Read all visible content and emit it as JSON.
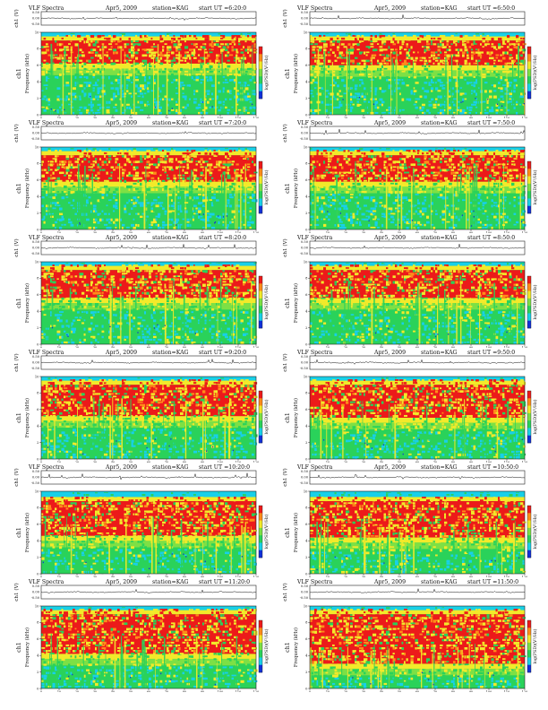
{
  "chart_data": [
    {
      "type": "heatmap",
      "title": "VLF Spectra",
      "date": "Apr5, 2009",
      "station": "station=KAG",
      "start": "start UT =6:20:0",
      "channel": "ch1",
      "ylabel": "Frequency (kHz)",
      "xlabel": "Time (sec)",
      "amp_label": "ch1 (V)",
      "amp_ticks": [
        "0.50",
        "0.00",
        "-0.50"
      ],
      "colorbar_label": "log(PSD)(V²/Hz)",
      "x_ticks": [
        "0",
        "10",
        "20",
        "30",
        "40",
        "50",
        "60",
        "70",
        "80",
        "90",
        "100",
        "110",
        "120"
      ],
      "y_ticks": [
        "0",
        "2",
        "4",
        "6",
        "8",
        "10"
      ],
      "xlim": [
        0,
        120
      ],
      "ylim": [
        0,
        10
      ],
      "red_band": [
        6.2,
        9.0
      ]
    },
    {
      "type": "heatmap",
      "title": "VLF Spectra",
      "date": "Apr5, 2009",
      "station": "station=KAG",
      "start": "start UT =6:50:0",
      "channel": "ch1",
      "ylabel": "Frequency (kHz)",
      "xlabel": "Time (sec)",
      "amp_label": "ch1 (V)",
      "amp_ticks": [
        "0.50",
        "0.00",
        "-0.50"
      ],
      "colorbar_label": "log(PSD)(V²/Hz)",
      "x_ticks": [
        "0",
        "10",
        "20",
        "30",
        "40",
        "50",
        "60",
        "70",
        "80",
        "90",
        "100",
        "110",
        "120"
      ],
      "y_ticks": [
        "0",
        "2",
        "4",
        "6",
        "8",
        "10"
      ],
      "xlim": [
        0,
        120
      ],
      "ylim": [
        0,
        10
      ],
      "red_band": [
        6.0,
        9.0
      ]
    },
    {
      "type": "heatmap",
      "title": "VLF Spectra",
      "date": "Apr5, 2009",
      "station": "station=KAG",
      "start": "start UT =7:20:0",
      "channel": "ch1",
      "ylabel": "Frequency (kHz)",
      "xlabel": "Time (sec)",
      "amp_label": "ch1 (V)",
      "amp_ticks": [
        "0.50",
        "0.00",
        "-0.50"
      ],
      "colorbar_label": "log(PSD)(V²/Hz)",
      "x_ticks": [
        "0",
        "10",
        "20",
        "30",
        "40",
        "50",
        "60",
        "70",
        "80",
        "90",
        "100",
        "110",
        "120"
      ],
      "y_ticks": [
        "0",
        "2",
        "4",
        "6",
        "8",
        "10"
      ],
      "xlim": [
        0,
        120
      ],
      "ylim": [
        0,
        10
      ],
      "red_band": [
        5.8,
        9.0
      ]
    },
    {
      "type": "heatmap",
      "title": "VLF Spectra",
      "date": "Apr5, 2009",
      "station": "station=KAG",
      "start": "start UT =7:50:0",
      "channel": "ch1",
      "ylabel": "Frequency (kHz)",
      "xlabel": "Time (sec)",
      "amp_label": "ch1 (V)",
      "amp_ticks": [
        "0.50",
        "0.00",
        "-0.50"
      ],
      "colorbar_label": "log(PSD)(V²/Hz)",
      "x_ticks": [
        "0",
        "10",
        "20",
        "30",
        "40",
        "50",
        "60",
        "70",
        "80",
        "90",
        "100",
        "110",
        "120"
      ],
      "y_ticks": [
        "0",
        "2",
        "4",
        "6",
        "8",
        "10"
      ],
      "xlim": [
        0,
        120
      ],
      "ylim": [
        0,
        10
      ],
      "red_band": [
        5.8,
        9.0
      ]
    },
    {
      "type": "heatmap",
      "title": "VLF Spectra",
      "date": "Apr5, 2009",
      "station": "station=KAG",
      "start": "start UT =8:20:0",
      "channel": "ch1",
      "ylabel": "Frequency (kHz)",
      "xlabel": "Time (sec)",
      "amp_label": "ch1 (V)",
      "amp_ticks": [
        "0.50",
        "0.00",
        "-0.50"
      ],
      "colorbar_label": "log(PSD)(V²/Hz)",
      "x_ticks": [
        "0",
        "10",
        "20",
        "30",
        "40",
        "50",
        "60",
        "70",
        "80",
        "90",
        "100",
        "110",
        "120"
      ],
      "y_ticks": [
        "0",
        "2",
        "4",
        "6",
        "8",
        "10"
      ],
      "xlim": [
        0,
        120
      ],
      "ylim": [
        0,
        10
      ],
      "red_band": [
        5.6,
        9.0
      ]
    },
    {
      "type": "heatmap",
      "title": "VLF Spectra",
      "date": "Apr5, 2009",
      "station": "station=KAG",
      "start": "start UT =8:50:0",
      "channel": "ch1",
      "ylabel": "Frequency (kHz)",
      "xlabel": "Time (sec)",
      "amp_label": "ch1 (V)",
      "amp_ticks": [
        "0.50",
        "0.00",
        "-0.50"
      ],
      "colorbar_label": "log(PSD)(V²/Hz)",
      "x_ticks": [
        "0",
        "10",
        "20",
        "30",
        "40",
        "50",
        "60",
        "70",
        "80",
        "90",
        "100",
        "110",
        "120"
      ],
      "y_ticks": [
        "0",
        "2",
        "4",
        "6",
        "8",
        "10"
      ],
      "xlim": [
        0,
        120
      ],
      "ylim": [
        0,
        10
      ],
      "red_band": [
        5.6,
        9.0
      ]
    },
    {
      "type": "heatmap",
      "title": "VLF Spectra",
      "date": "Apr5, 2009",
      "station": "station=KAG",
      "start": "start UT =9:20:0",
      "channel": "ch1",
      "ylabel": "Frequency (kHz)",
      "xlabel": "Time (sec)",
      "amp_label": "ch1 (V)",
      "amp_ticks": [
        "0.50",
        "0.00",
        "-0.50"
      ],
      "colorbar_label": "log(PSD)(V²/Hz)",
      "x_ticks": [
        "0",
        "10",
        "20",
        "30",
        "40",
        "50",
        "60",
        "70",
        "80",
        "90",
        "100",
        "110",
        "120"
      ],
      "y_ticks": [
        "0",
        "2",
        "4",
        "6",
        "8",
        "10"
      ],
      "xlim": [
        0,
        120
      ],
      "ylim": [
        0,
        10
      ],
      "red_band": [
        5.2,
        9.0
      ]
    },
    {
      "type": "heatmap",
      "title": "VLF Spectra",
      "date": "Apr5, 2009",
      "station": "station=KAG",
      "start": "start UT =9:50:0",
      "channel": "ch1",
      "ylabel": "Frequency (kHz)",
      "xlabel": "Time (sec)",
      "amp_label": "ch1 (V)",
      "amp_ticks": [
        "0.50",
        "0.00",
        "-0.50"
      ],
      "colorbar_label": "log(PSD)(V²/Hz)",
      "x_ticks": [
        "0",
        "10",
        "20",
        "30",
        "40",
        "50",
        "60",
        "70",
        "80",
        "90",
        "100",
        "110",
        "120"
      ],
      "y_ticks": [
        "0",
        "2",
        "4",
        "6",
        "8",
        "10"
      ],
      "xlim": [
        0,
        120
      ],
      "ylim": [
        0,
        10
      ],
      "red_band": [
        5.0,
        9.0
      ]
    },
    {
      "type": "heatmap",
      "title": "VLF Spectra",
      "date": "Apr5, 2009",
      "station": "station=KAG",
      "start": "start UT =10:20:0",
      "channel": "ch1",
      "ylabel": "Frequency (kHz)",
      "xlabel": "Time (sec)",
      "amp_label": "ch1 (V)",
      "amp_ticks": [
        "0.50",
        "0.00",
        "-0.50"
      ],
      "colorbar_label": "log(PSD)(V²/Hz)",
      "x_ticks": [
        "0",
        "10",
        "20",
        "30",
        "40",
        "50",
        "60",
        "70",
        "80",
        "90",
        "100",
        "110",
        "120"
      ],
      "y_ticks": [
        "0",
        "2",
        "4",
        "6",
        "8",
        "10"
      ],
      "xlim": [
        0,
        120
      ],
      "ylim": [
        0,
        10
      ],
      "red_band": [
        4.6,
        8.8
      ]
    },
    {
      "type": "heatmap",
      "title": "VLF Spectra",
      "date": "Apr5, 2009",
      "station": "station=KAG",
      "start": "start UT =10:50:0",
      "channel": "ch1",
      "ylabel": "Frequency (kHz)",
      "xlabel": "Time (sec)",
      "amp_label": "ch1 (V)",
      "amp_ticks": [
        "0.50",
        "0.00",
        "-0.50"
      ],
      "colorbar_label": "log(PSD)(V²/Hz)",
      "x_ticks": [
        "0",
        "10",
        "20",
        "30",
        "40",
        "50",
        "60",
        "70",
        "80",
        "90",
        "100",
        "110",
        "120"
      ],
      "y_ticks": [
        "0",
        "2",
        "4",
        "6",
        "8",
        "10"
      ],
      "xlim": [
        0,
        120
      ],
      "ylim": [
        0,
        10
      ],
      "red_band": [
        4.4,
        8.8
      ]
    },
    {
      "type": "heatmap",
      "title": "VLF Spectra",
      "date": "Apr5, 2009",
      "station": "station=KAG",
      "start": "start UT =11:20:0",
      "channel": "ch1",
      "ylabel": "Frequency (kHz)",
      "xlabel": "Time (sec)",
      "amp_label": "ch1 (V)",
      "amp_ticks": [
        "0.50",
        "0.00",
        "-0.50"
      ],
      "colorbar_label": "log(PSD)(V²/Hz)",
      "x_ticks": [
        "0",
        "10",
        "20",
        "30",
        "40",
        "50",
        "60",
        "70",
        "80",
        "90",
        "100",
        "110",
        "120"
      ],
      "y_ticks": [
        "0",
        "2",
        "4",
        "6",
        "8",
        "10"
      ],
      "xlim": [
        0,
        120
      ],
      "ylim": [
        0,
        10
      ],
      "red_band": [
        4.2,
        9.0
      ]
    },
    {
      "type": "heatmap",
      "title": "VLF Spectra",
      "date": "Apr5, 2009",
      "station": "station=KAG",
      "start": "start UT =11:50:0",
      "channel": "ch1",
      "ylabel": "Frequency (kHz)",
      "xlabel": "Time (sec)",
      "amp_label": "ch1 (V)",
      "amp_ticks": [
        "0.50",
        "0.00",
        "-0.50"
      ],
      "colorbar_label": "log(PSD)(V²/Hz)",
      "x_ticks": [
        "0",
        "10",
        "20",
        "30",
        "40",
        "50",
        "60",
        "70",
        "80",
        "90",
        "100",
        "110",
        "120"
      ],
      "y_ticks": [
        "0",
        "2",
        "4",
        "6",
        "8",
        "10"
      ],
      "xlim": [
        0,
        120
      ],
      "ylim": [
        0,
        10
      ],
      "red_band": [
        3.0,
        9.0
      ]
    }
  ]
}
